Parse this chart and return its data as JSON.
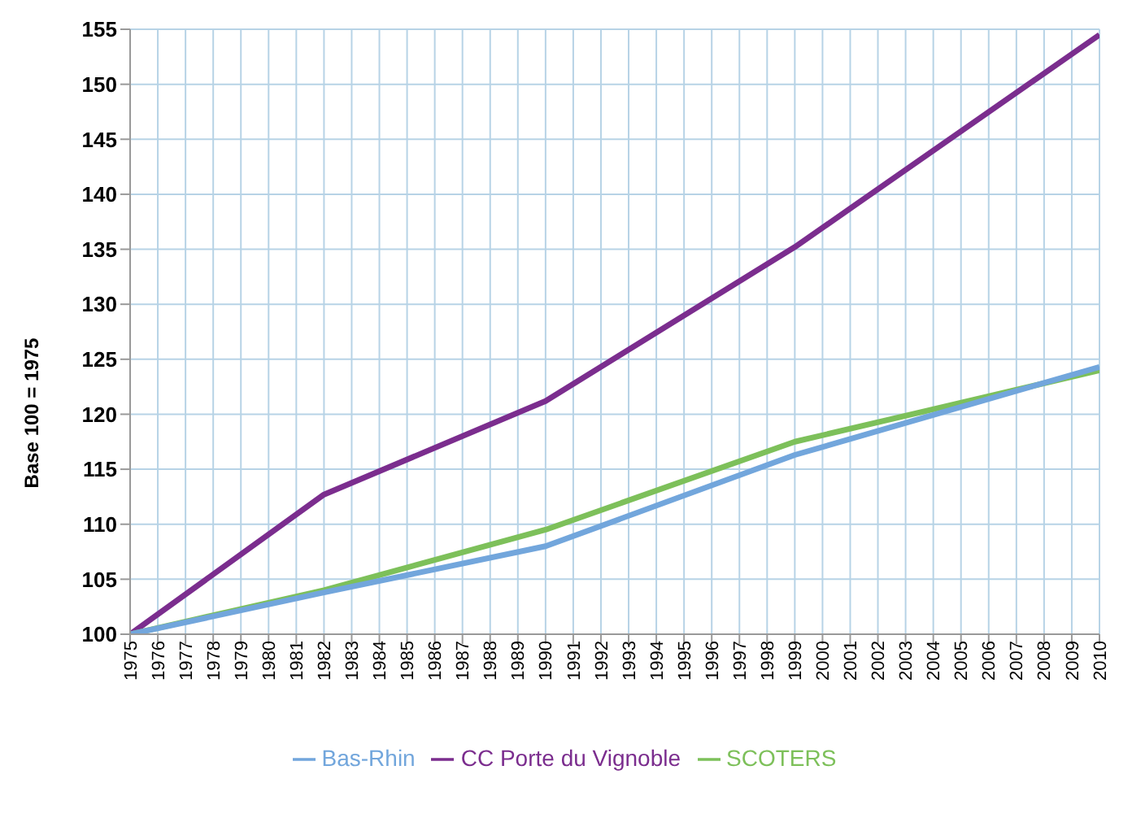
{
  "chart_data": {
    "type": "line",
    "ylabel": "Base 100 = 1975",
    "x": [
      1975,
      1982,
      1990,
      1999,
      2010
    ],
    "series": [
      {
        "name": "CC Porte du Vignoble",
        "color": "#7b2d8e",
        "values": [
          100,
          112.7,
          121.2,
          135.2,
          154.5
        ]
      },
      {
        "name": "SCOTERS",
        "color": "#7dc05a",
        "values": [
          100,
          104,
          109.5,
          117.5,
          124
        ]
      },
      {
        "name": "Bas-Rhin",
        "color": "#72a6dc",
        "values": [
          100,
          103.8,
          108,
          116.3,
          124.3
        ]
      }
    ],
    "xlim": [
      1975,
      2010
    ],
    "xticks": [
      1975,
      1976,
      1977,
      1978,
      1979,
      1980,
      1981,
      1982,
      1983,
      1984,
      1985,
      1986,
      1987,
      1988,
      1989,
      1990,
      1991,
      1992,
      1993,
      1994,
      1995,
      1996,
      1997,
      1998,
      1999,
      2000,
      2001,
      2002,
      2003,
      2004,
      2005,
      2006,
      2007,
      2008,
      2009,
      2010
    ],
    "ylim": [
      100,
      155
    ],
    "yticks": [
      100,
      105,
      110,
      115,
      120,
      125,
      130,
      135,
      140,
      145,
      150,
      155
    ],
    "grid": true,
    "legend": "bottom",
    "marker": "none",
    "line_style": "solid"
  }
}
